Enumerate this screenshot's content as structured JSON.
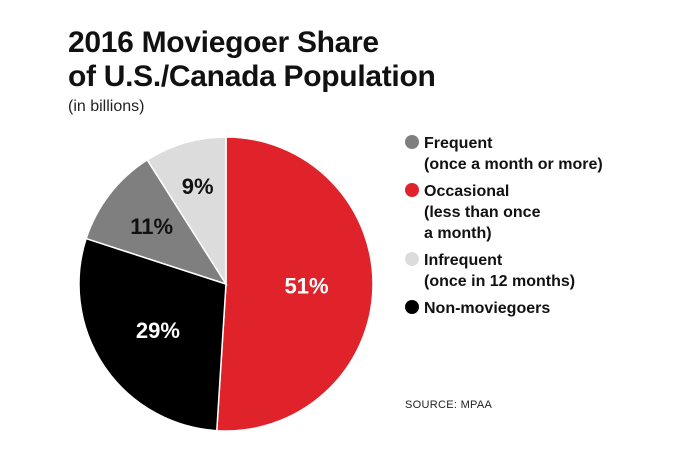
{
  "chart_data": {
    "type": "pie",
    "title_lines": [
      "2016 Moviegoer Share",
      "of U.S./Canada Population"
    ],
    "subtitle": "(in billions)",
    "slices": [
      {
        "label": "Occasional",
        "description": "(less than once\na month)",
        "value": 51,
        "value_label": "51%",
        "color": "#e0222b",
        "text_color": "#ffffff"
      },
      {
        "label": "Non-moviegoers",
        "description": "",
        "value": 29,
        "value_label": "29%",
        "color": "#000000",
        "text_color": "#ffffff"
      },
      {
        "label": "Frequent",
        "description": "(once a month or more)",
        "value": 11,
        "value_label": "11%",
        "color": "#7f7f7f",
        "text_color": "#111111"
      },
      {
        "label": "Infrequent",
        "description": "(once in 12 months)",
        "value": 9,
        "value_label": "9%",
        "color": "#dcdcdc",
        "text_color": "#111111"
      }
    ],
    "legend": [
      {
        "text": "Frequent\n(once a month or more)",
        "color": "#7f7f7f"
      },
      {
        "text": "Occasional\n(less than once\na month)",
        "color": "#e0222b"
      },
      {
        "text": "Infrequent\n(once in 12 months)",
        "color": "#dcdcdc"
      },
      {
        "text": "Non-moviegoers",
        "color": "#000000"
      }
    ],
    "legend_position": "right"
  },
  "source": "SOURCE: MPAA"
}
